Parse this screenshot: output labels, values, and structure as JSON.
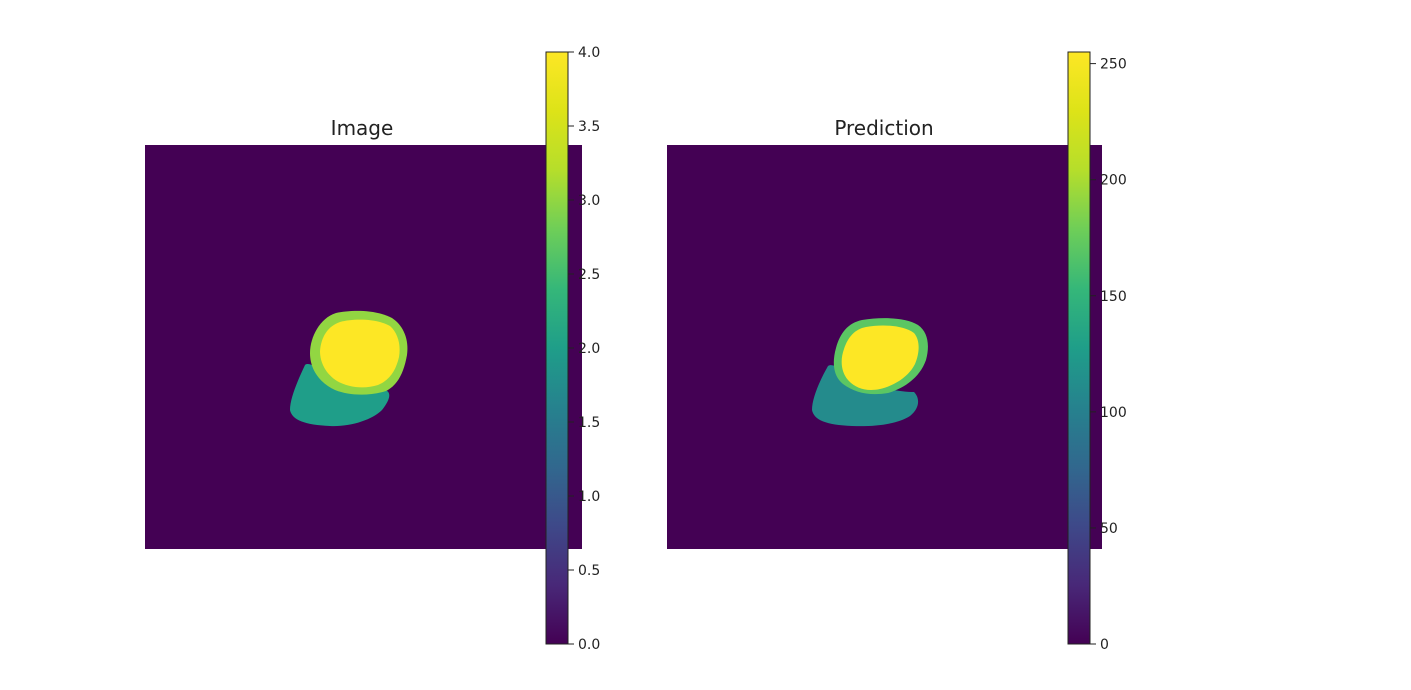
{
  "chart_data": [
    {
      "type": "heatmap",
      "title": "Image",
      "xlabel": "",
      "ylabel": "",
      "axes_visible": false,
      "colormap": "viridis",
      "colorbar": {
        "range": [
          0.0,
          4.0
        ],
        "ticks": [
          0.0,
          0.5,
          1.0,
          1.5,
          2.0,
          2.5,
          3.0,
          3.5,
          4.0
        ],
        "tick_labels": [
          "0.0",
          "0.5",
          "1.0",
          "1.5",
          "2.0",
          "2.5",
          "3.0",
          "3.5",
          "4.0"
        ]
      },
      "regions": [
        {
          "name": "background",
          "value": 0
        },
        {
          "name": "lower-lobe",
          "value": 2
        },
        {
          "name": "ring",
          "value": 3
        },
        {
          "name": "core",
          "value": 4
        }
      ]
    },
    {
      "type": "heatmap",
      "title": "Prediction",
      "xlabel": "",
      "ylabel": "",
      "axes_visible": false,
      "colormap": "viridis",
      "colorbar": {
        "range": [
          0,
          255
        ],
        "ticks": [
          0,
          50,
          100,
          150,
          200,
          250
        ],
        "tick_labels": [
          "0",
          "50",
          "100",
          "150",
          "200",
          "250"
        ]
      },
      "regions": [
        {
          "name": "background",
          "value": 0
        },
        {
          "name": "lower-lobe",
          "value": 110
        },
        {
          "name": "ring",
          "value": 170
        },
        {
          "name": "core",
          "value": 255
        }
      ]
    }
  ]
}
